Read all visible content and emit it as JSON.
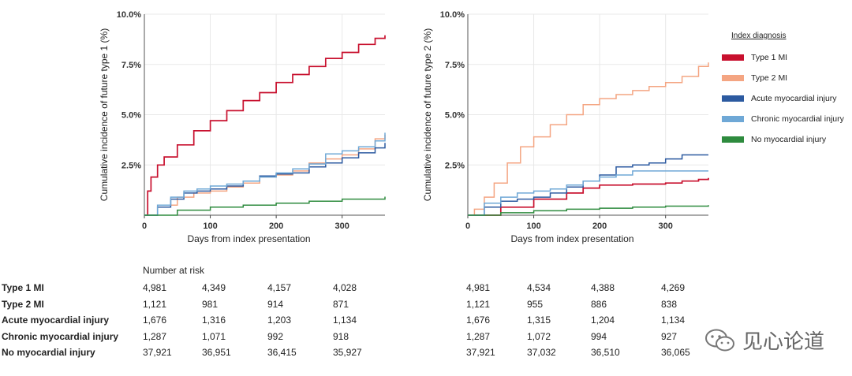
{
  "chart_data": [
    {
      "type": "line",
      "panel": "left",
      "ylabel": "Cumulative incidence of future type 1 (%)",
      "xlabel": "Days from index presentation",
      "xlim": [
        0,
        365
      ],
      "ylim": [
        0,
        10
      ],
      "x_ticks": [
        "0",
        "100",
        "200",
        "300"
      ],
      "y_ticks": [
        "2.5%",
        "5.0%",
        "7.5%",
        "10.0%"
      ],
      "series": [
        {
          "name": "Type 1 MI",
          "color": "#c8102e",
          "points": [
            [
              0,
              0
            ],
            [
              5,
              1.2
            ],
            [
              10,
              1.9
            ],
            [
              20,
              2.5
            ],
            [
              30,
              2.9
            ],
            [
              50,
              3.5
            ],
            [
              75,
              4.2
            ],
            [
              100,
              4.7
            ],
            [
              125,
              5.2
            ],
            [
              150,
              5.7
            ],
            [
              175,
              6.1
            ],
            [
              200,
              6.6
            ],
            [
              225,
              7.0
            ],
            [
              250,
              7.4
            ],
            [
              275,
              7.8
            ],
            [
              300,
              8.1
            ],
            [
              325,
              8.5
            ],
            [
              350,
              8.8
            ],
            [
              365,
              8.95
            ]
          ]
        },
        {
          "name": "Type 2 MI",
          "color": "#f4a582",
          "points": [
            [
              0,
              0
            ],
            [
              20,
              0.5
            ],
            [
              50,
              0.9
            ],
            [
              75,
              1.1
            ],
            [
              100,
              1.2
            ],
            [
              125,
              1.4
            ],
            [
              150,
              1.6
            ],
            [
              175,
              1.9
            ],
            [
              200,
              2.0
            ],
            [
              225,
              2.2
            ],
            [
              250,
              2.6
            ],
            [
              275,
              2.8
            ],
            [
              300,
              3.0
            ],
            [
              325,
              3.3
            ],
            [
              350,
              3.8
            ],
            [
              365,
              4.0
            ]
          ]
        },
        {
          "name": "Acute myocardial injury",
          "color": "#2c5aa0",
          "points": [
            [
              0,
              0
            ],
            [
              20,
              0.4
            ],
            [
              40,
              0.8
            ],
            [
              60,
              1.1
            ],
            [
              80,
              1.2
            ],
            [
              100,
              1.3
            ],
            [
              125,
              1.45
            ],
            [
              150,
              1.7
            ],
            [
              175,
              1.95
            ],
            [
              200,
              2.05
            ],
            [
              225,
              2.1
            ],
            [
              250,
              2.4
            ],
            [
              275,
              2.6
            ],
            [
              300,
              2.85
            ],
            [
              325,
              3.1
            ],
            [
              350,
              3.35
            ],
            [
              365,
              3.6
            ]
          ]
        },
        {
          "name": "Chronic myocardial injury",
          "color": "#6fa8d6",
          "points": [
            [
              0,
              0
            ],
            [
              20,
              0.5
            ],
            [
              40,
              0.9
            ],
            [
              60,
              1.2
            ],
            [
              80,
              1.3
            ],
            [
              100,
              1.45
            ],
            [
              125,
              1.55
            ],
            [
              150,
              1.7
            ],
            [
              175,
              1.9
            ],
            [
              200,
              2.1
            ],
            [
              225,
              2.3
            ],
            [
              250,
              2.55
            ],
            [
              275,
              3.05
            ],
            [
              300,
              3.2
            ],
            [
              325,
              3.4
            ],
            [
              350,
              3.7
            ],
            [
              365,
              4.1
            ]
          ]
        },
        {
          "name": "No myocardial injury",
          "color": "#2e8b3e",
          "points": [
            [
              0,
              0
            ],
            [
              50,
              0.25
            ],
            [
              100,
              0.4
            ],
            [
              150,
              0.5
            ],
            [
              200,
              0.6
            ],
            [
              250,
              0.7
            ],
            [
              300,
              0.8
            ],
            [
              365,
              0.92
            ]
          ]
        }
      ]
    },
    {
      "type": "line",
      "panel": "right",
      "ylabel": "Cumulative incidence of future type 2 (%)",
      "xlabel": "Days from index presentation",
      "xlim": [
        0,
        365
      ],
      "ylim": [
        0,
        10
      ],
      "x_ticks": [
        "0",
        "100",
        "200",
        "300"
      ],
      "y_ticks": [
        "2.5%",
        "5.0%",
        "7.5%",
        "10.0%"
      ],
      "series": [
        {
          "name": "Type 1 MI",
          "color": "#c8102e",
          "points": [
            [
              0,
              0
            ],
            [
              50,
              0.4
            ],
            [
              100,
              0.8
            ],
            [
              150,
              1.1
            ],
            [
              175,
              1.35
            ],
            [
              200,
              1.5
            ],
            [
              250,
              1.55
            ],
            [
              300,
              1.6
            ],
            [
              325,
              1.7
            ],
            [
              350,
              1.78
            ],
            [
              365,
              1.85
            ]
          ]
        },
        {
          "name": "Type 2 MI",
          "color": "#f4a582",
          "points": [
            [
              0,
              0
            ],
            [
              10,
              0.3
            ],
            [
              25,
              0.9
            ],
            [
              40,
              1.6
            ],
            [
              60,
              2.6
            ],
            [
              80,
              3.4
            ],
            [
              100,
              3.9
            ],
            [
              125,
              4.5
            ],
            [
              150,
              5.0
            ],
            [
              175,
              5.5
            ],
            [
              200,
              5.8
            ],
            [
              225,
              6.0
            ],
            [
              250,
              6.2
            ],
            [
              275,
              6.4
            ],
            [
              300,
              6.6
            ],
            [
              325,
              6.9
            ],
            [
              350,
              7.4
            ],
            [
              365,
              7.6
            ]
          ]
        },
        {
          "name": "Acute myocardial injury",
          "color": "#2c5aa0",
          "points": [
            [
              0,
              0
            ],
            [
              25,
              0.4
            ],
            [
              50,
              0.7
            ],
            [
              75,
              0.8
            ],
            [
              100,
              0.9
            ],
            [
              125,
              1.1
            ],
            [
              150,
              1.4
            ],
            [
              175,
              1.7
            ],
            [
              200,
              2.0
            ],
            [
              225,
              2.4
            ],
            [
              250,
              2.5
            ],
            [
              275,
              2.6
            ],
            [
              300,
              2.8
            ],
            [
              325,
              3.0
            ],
            [
              365,
              3.0
            ]
          ]
        },
        {
          "name": "Chronic myocardial injury",
          "color": "#6fa8d6",
          "points": [
            [
              0,
              0
            ],
            [
              25,
              0.6
            ],
            [
              50,
              0.9
            ],
            [
              75,
              1.1
            ],
            [
              100,
              1.2
            ],
            [
              125,
              1.3
            ],
            [
              150,
              1.5
            ],
            [
              175,
              1.7
            ],
            [
              200,
              1.9
            ],
            [
              225,
              2.0
            ],
            [
              250,
              2.2
            ],
            [
              300,
              2.2
            ],
            [
              365,
              2.2
            ]
          ]
        },
        {
          "name": "No myocardial injury",
          "color": "#2e8b3e",
          "points": [
            [
              0,
              0
            ],
            [
              50,
              0.12
            ],
            [
              100,
              0.22
            ],
            [
              150,
              0.3
            ],
            [
              200,
              0.35
            ],
            [
              250,
              0.4
            ],
            [
              300,
              0.45
            ],
            [
              365,
              0.5
            ]
          ]
        }
      ]
    }
  ],
  "legend": {
    "title": "Index diagnosis",
    "items": [
      {
        "label": "Type 1 MI",
        "color": "#c8102e"
      },
      {
        "label": "Type 2 MI",
        "color": "#f4a582"
      },
      {
        "label": "Acute myocardial injury",
        "color": "#2c5aa0"
      },
      {
        "label": "Chronic myocardial injury",
        "color": "#6fa8d6"
      },
      {
        "label": "No myocardial injury",
        "color": "#2e8b3e"
      }
    ]
  },
  "risk_table": {
    "title": "Number at risk",
    "rows": [
      {
        "label": "Type 1 MI",
        "left": [
          "4,981",
          "4,349",
          "4,157",
          "4,028"
        ],
        "right": [
          "4,981",
          "4,534",
          "4,388",
          "4,269"
        ]
      },
      {
        "label": "Type 2 MI",
        "left": [
          "1,121",
          "981",
          "914",
          "871"
        ],
        "right": [
          "1,121",
          "955",
          "886",
          "838"
        ]
      },
      {
        "label": "Acute myocardial injury",
        "left": [
          "1,676",
          "1,316",
          "1,203",
          "1,134"
        ],
        "right": [
          "1,676",
          "1,315",
          "1,204",
          "1,134"
        ]
      },
      {
        "label": "Chronic myocardial injury",
        "left": [
          "1,287",
          "1,071",
          "992",
          "918"
        ],
        "right": [
          "1,287",
          "1,072",
          "994",
          "927"
        ]
      },
      {
        "label": "No myocardial injury",
        "left": [
          "37,921",
          "36,951",
          "36,415",
          "35,927"
        ],
        "right": [
          "37,921",
          "37,032",
          "36,510",
          "36,065"
        ]
      }
    ]
  },
  "watermark": {
    "text": "见心论道",
    "icon": "wechat-icon"
  }
}
